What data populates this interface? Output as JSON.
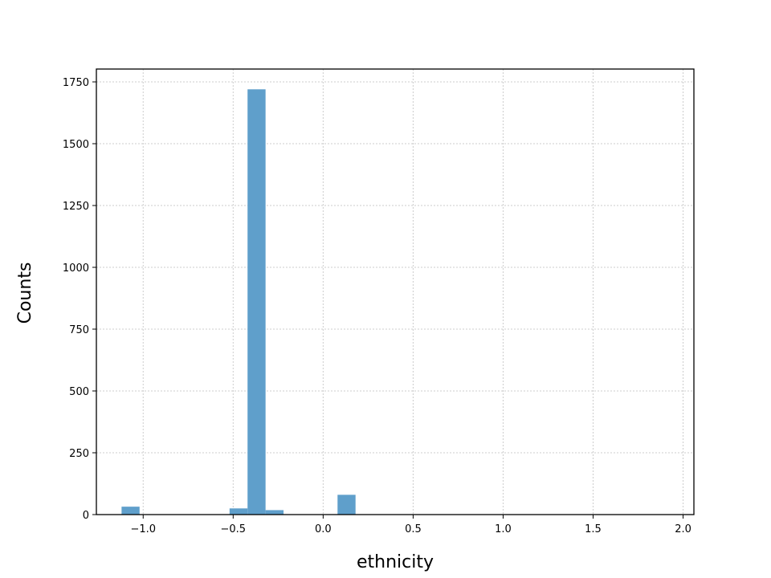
{
  "chart_data": {
    "type": "bar",
    "title": "",
    "xlabel": "ethnicity",
    "ylabel": "Counts",
    "xlim": [
      -1.26,
      2.06
    ],
    "ylim": [
      0,
      1802
    ],
    "grid": true,
    "bar_color": "#5f9fcb",
    "bin_width": 0.1,
    "bins": [
      {
        "x0": -1.12,
        "x1": -1.02,
        "count": 32
      },
      {
        "x0": -0.52,
        "x1": -0.42,
        "count": 25
      },
      {
        "x0": -0.42,
        "x1": -0.32,
        "count": 1720
      },
      {
        "x0": -0.32,
        "x1": -0.22,
        "count": 18
      },
      {
        "x0": 0.08,
        "x1": 0.18,
        "count": 80
      }
    ],
    "x_ticks": [
      {
        "value": -1.0,
        "label": "−1.0"
      },
      {
        "value": -0.5,
        "label": "−0.5"
      },
      {
        "value": 0.0,
        "label": "0.0"
      },
      {
        "value": 0.5,
        "label": "0.5"
      },
      {
        "value": 1.0,
        "label": "1.0"
      },
      {
        "value": 1.5,
        "label": "1.5"
      },
      {
        "value": 2.0,
        "label": "2.0"
      }
    ],
    "y_ticks": [
      {
        "value": 0,
        "label": "0"
      },
      {
        "value": 250,
        "label": "250"
      },
      {
        "value": 500,
        "label": "500"
      },
      {
        "value": 750,
        "label": "750"
      },
      {
        "value": 1000,
        "label": "1000"
      },
      {
        "value": 1250,
        "label": "1250"
      },
      {
        "value": 1500,
        "label": "1500"
      },
      {
        "value": 1750,
        "label": "1750"
      }
    ]
  }
}
